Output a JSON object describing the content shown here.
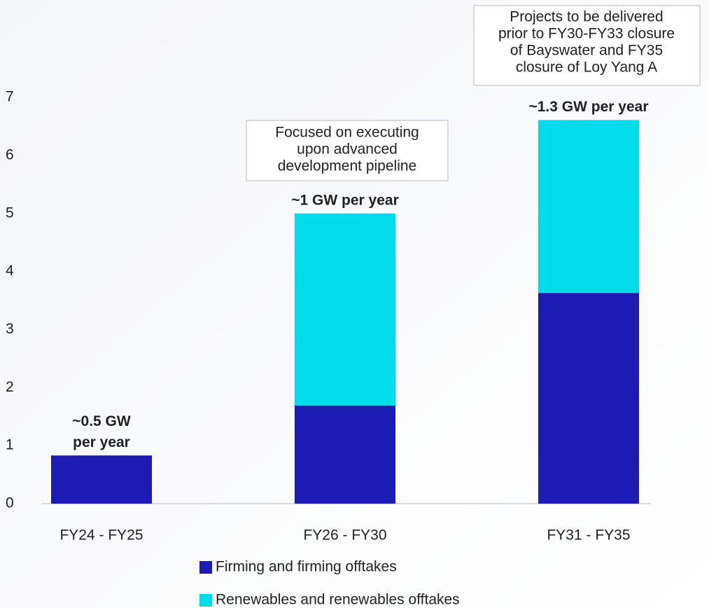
{
  "chart_data": {
    "type": "stacked_bar",
    "categories": [
      "FY24 - FY25",
      "FY26 - FY30",
      "FY31 - FY35"
    ],
    "series": [
      {
        "name": "Firming and firming offtakes",
        "color": "#1c1cb4",
        "values": [
          0.83,
          1.69,
          3.63
        ]
      },
      {
        "name": "Renewables and renewables offtakes",
        "color": "#00dcea",
        "values": [
          0,
          3.31,
          2.98
        ]
      }
    ],
    "ylim": [
      0,
      7
    ],
    "yticks": [
      0,
      1,
      2,
      3,
      4,
      5,
      6,
      7
    ],
    "bar_labels": [
      [
        "~0.5 GW",
        "per year"
      ],
      [
        "~1 GW per year"
      ],
      [
        "~1.3 GW per year"
      ]
    ],
    "callouts": [
      [
        "Focused on executing",
        "upon advanced",
        "development pipeline"
      ],
      [
        "Projects to be delivered",
        "prior to FY30-FY33 closure",
        "of Bayswater and FY35",
        "closure of Loy Yang A"
      ]
    ]
  }
}
